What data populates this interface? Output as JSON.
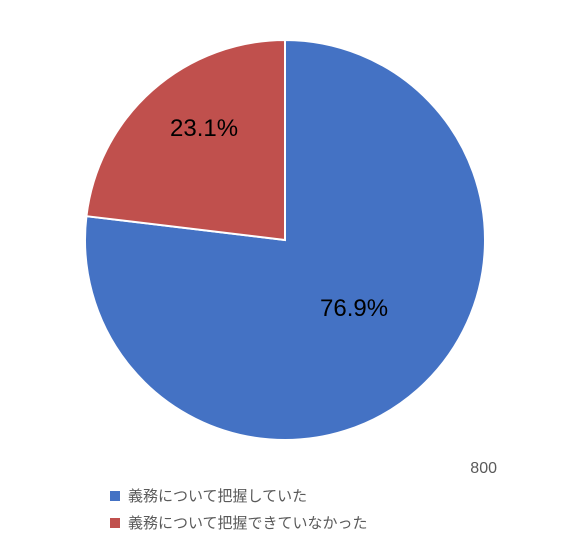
{
  "chart": {
    "type": "pie",
    "background_color": "#ffffff",
    "slices": [
      {
        "label": "義務について把握していた",
        "value": 76.9,
        "pct_text": "76.9%",
        "color": "#4472c4"
      },
      {
        "label": "義務について把握できていなかった",
        "value": 23.1,
        "pct_text": "23.1%",
        "color": "#c0504d"
      }
    ],
    "slice_separator_color": "#ffffff",
    "slice_separator_width": 2,
    "label_fontsize": 24,
    "label_color": "#000000",
    "legend": {
      "fontsize": 15,
      "text_color": "#5a5a5a",
      "swatch_size": 10
    },
    "side_number": "800",
    "side_number_color": "#5a5a5a",
    "start_angle_deg": -90
  }
}
